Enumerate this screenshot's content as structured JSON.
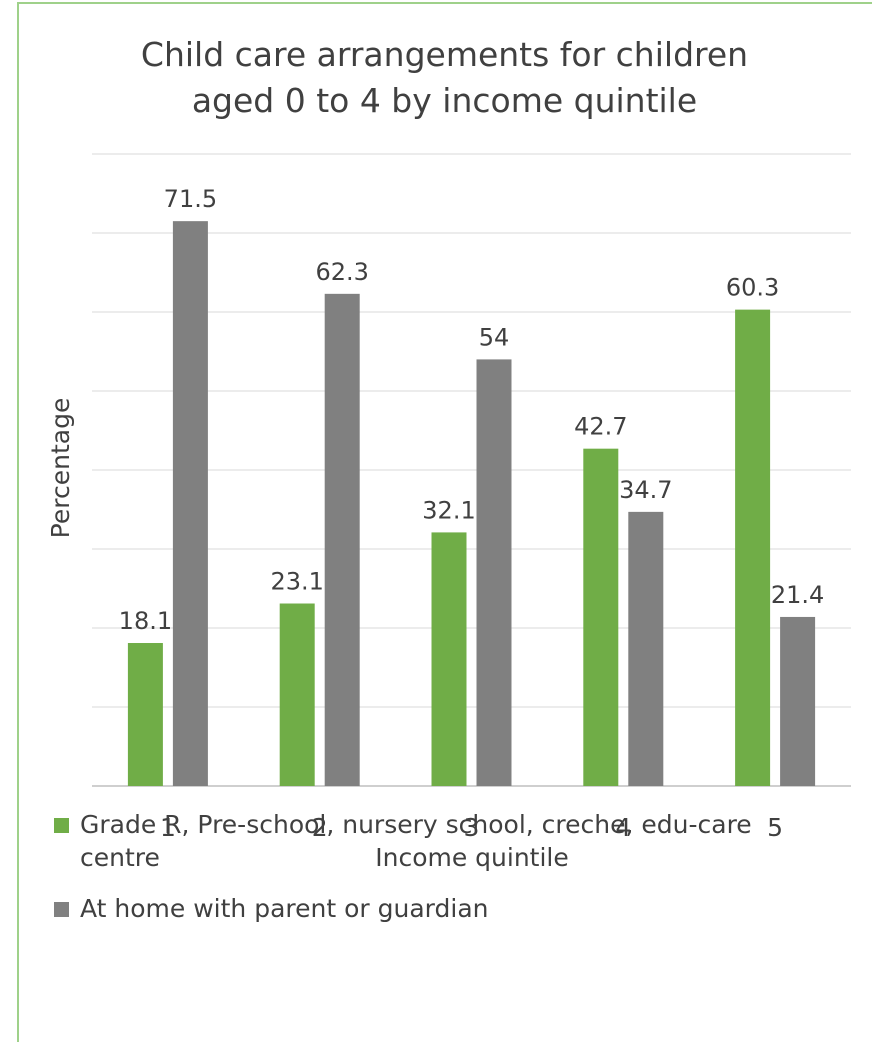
{
  "chart_data": {
    "type": "bar",
    "title_lines": [
      "Child care arrangements for children",
      "aged 0 to 4 by income quintile"
    ],
    "xlabel": "Income quintile",
    "ylabel": "Percentage",
    "categories": [
      "1",
      "2",
      "3",
      "4",
      "5"
    ],
    "ylim": [
      0,
      80
    ],
    "grid": true,
    "legend_position": "bottom",
    "series": [
      {
        "name": "Grade R, Pre-school, nursery school, creche, edu-care centre",
        "color": "#70ad47",
        "values": [
          18.1,
          23.1,
          32.1,
          42.7,
          60.3
        ],
        "labels": [
          "18.1",
          "23.1",
          "32.1",
          "42.7",
          "60.3"
        ]
      },
      {
        "name": "At home with parent or guardian",
        "color": "#808080",
        "values": [
          71.5,
          62.3,
          54,
          34.7,
          21.4
        ],
        "labels": [
          "71.5",
          "62.3",
          "54",
          "34.7",
          "21.4"
        ]
      }
    ]
  },
  "legend": {
    "series1_line1": "Grade R, Pre-school, nursery school, creche, edu-care",
    "series1_line2": "centre",
    "series2": "At home with parent or guardian"
  }
}
